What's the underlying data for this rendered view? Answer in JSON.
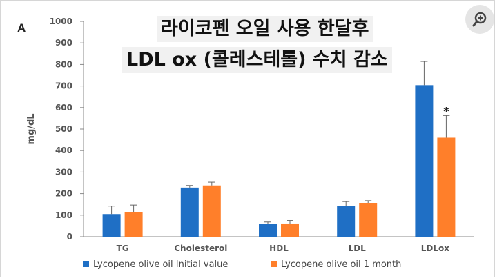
{
  "panel_label": "A",
  "title_lines": [
    "라이코펜 오일 사용 한달후",
    "LDL ox (콜레스테롤) 수치 감소"
  ],
  "icons": {
    "zoom": "zoom-in-magnifier-icon"
  },
  "colors": {
    "initial": "#1f6fc5",
    "one_month": "#ff7f2a",
    "axis": "#8a8a8a",
    "text": "#555555"
  },
  "chart_data": {
    "type": "bar",
    "ylabel": "mg/dL",
    "ylim": [
      0,
      1000
    ],
    "yticks": [
      0,
      100,
      200,
      300,
      400,
      500,
      600,
      700,
      800,
      900,
      1000
    ],
    "categories": [
      "TG",
      "Cholesterol",
      "HDL",
      "LDL",
      "LDLox"
    ],
    "series": [
      {
        "name": "Lycopene olive oil Initial value",
        "values": [
          105,
          228,
          58,
          143,
          704
        ],
        "errors": [
          37,
          10,
          10,
          20,
          110
        ]
      },
      {
        "name": "Lycopene olive oil 1 month",
        "values": [
          115,
          238,
          61,
          154,
          460
        ],
        "errors": [
          32,
          15,
          14,
          13,
          103
        ]
      }
    ],
    "annotations": [
      {
        "category": "LDLox",
        "series": 1,
        "text": "*"
      }
    ],
    "legend_position": "bottom",
    "grid": false
  }
}
